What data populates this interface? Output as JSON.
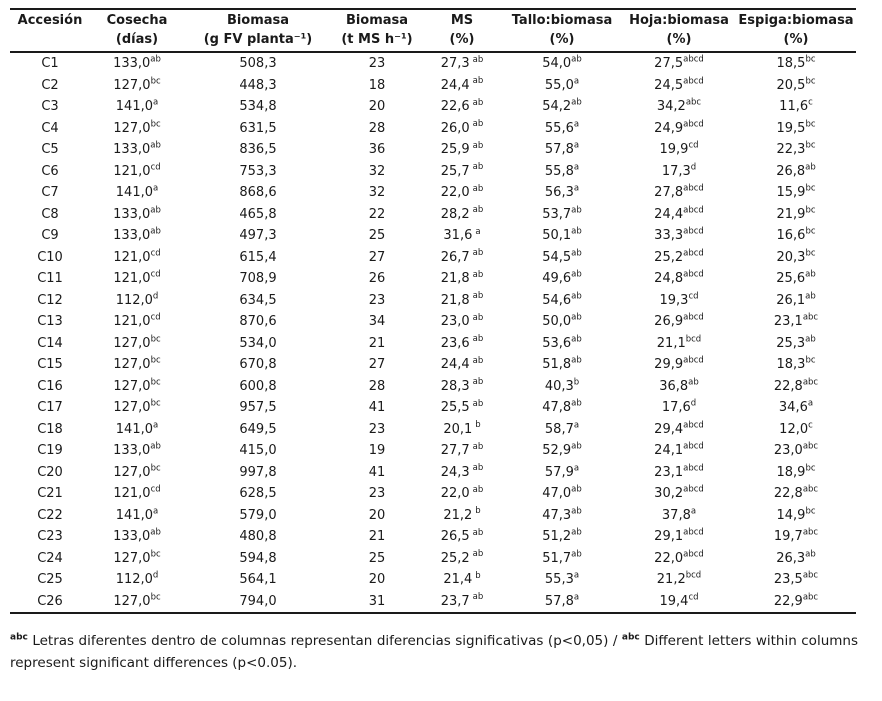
{
  "table": {
    "columns": [
      {
        "id": "accession",
        "line1": "Accesión",
        "line2": "",
        "value_index": 0,
        "sup_index": -1,
        "sup_gap": false
      },
      {
        "id": "cosecha",
        "line1": "Cosecha",
        "line2": "(días)",
        "value_index": 1,
        "sup_index": 2,
        "sup_gap": false
      },
      {
        "id": "biomasa-g",
        "line1": "Biomasa",
        "line2": "(g FV planta⁻¹)",
        "value_index": 3,
        "sup_index": -1,
        "sup_gap": false
      },
      {
        "id": "biomasa-t",
        "line1": "Biomasa",
        "line2": "(t MS h⁻¹)",
        "value_index": 4,
        "sup_index": -1,
        "sup_gap": false
      },
      {
        "id": "ms",
        "line1": "MS",
        "line2": "(%)",
        "value_index": 5,
        "sup_index": 6,
        "sup_gap": true
      },
      {
        "id": "tallo",
        "line1": "Tallo:biomasa",
        "line2": "(%)",
        "value_index": 7,
        "sup_index": 8,
        "sup_gap": false
      },
      {
        "id": "hoja",
        "line1": "Hoja:biomasa",
        "line2": "(%)",
        "value_index": 9,
        "sup_index": 10,
        "sup_gap": false
      },
      {
        "id": "espiga",
        "line1": "Espiga:biomasa",
        "line2": "(%)",
        "value_index": 11,
        "sup_index": 12,
        "sup_gap": false
      }
    ],
    "row_fields": [
      "accession",
      "cosecha",
      "cosecha_sup",
      "biomasa_g_fv_planta",
      "biomasa_t_ms_h",
      "ms_pct",
      "ms_sup",
      "tallo_biomasa_pct",
      "tallo_sup",
      "hoja_biomasa_pct",
      "hoja_sup",
      "espiga_biomasa_pct",
      "espiga_sup"
    ],
    "rows": [
      [
        "C1",
        "133,0",
        "ab",
        "508,3",
        "23",
        "27,3",
        "ab",
        "54,0",
        "ab",
        "27,5",
        "abcd",
        "18,5",
        "bc"
      ],
      [
        "C2",
        "127,0",
        "bc",
        "448,3",
        "18",
        "24,4",
        "ab",
        "55,0",
        "a",
        "24,5",
        "abcd",
        "20,5",
        "bc"
      ],
      [
        "C3",
        "141,0",
        "a",
        "534,8",
        "20",
        "22,6",
        "ab",
        "54,2",
        "ab",
        "34,2",
        "abc",
        "11,6",
        "c"
      ],
      [
        "C4",
        "127,0",
        "bc",
        "631,5",
        "28",
        "26,0",
        "ab",
        "55,6",
        "a",
        "24,9",
        "abcd",
        "19,5",
        "bc"
      ],
      [
        "C5",
        "133,0",
        "ab",
        "836,5",
        "36",
        "25,9",
        "ab",
        "57,8",
        "a",
        "19,9",
        "cd",
        "22,3",
        "bc"
      ],
      [
        "C6",
        "121,0",
        "cd",
        "753,3",
        "32",
        "25,7",
        "ab",
        "55,8",
        "a",
        "17,3",
        "d",
        "26,8",
        "ab"
      ],
      [
        "C7",
        "141,0",
        "a",
        "868,6",
        "32",
        "22,0",
        "ab",
        "56,3",
        "a",
        "27,8",
        "abcd",
        "15,9",
        "bc"
      ],
      [
        "C8",
        "133,0",
        "ab",
        "465,8",
        "22",
        "28,2",
        "ab",
        "53,7",
        "ab",
        "24,4",
        "abcd",
        "21,9",
        "bc"
      ],
      [
        "C9",
        "133,0",
        "ab",
        "497,3",
        "25",
        "31,6",
        "a",
        "50,1",
        "ab",
        "33,3",
        "abcd",
        "16,6",
        "bc"
      ],
      [
        "C10",
        "121,0",
        "cd",
        "615,4",
        "27",
        "26,7",
        "ab",
        "54,5",
        "ab",
        "25,2",
        "abcd",
        "20,3",
        "bc"
      ],
      [
        "C11",
        "121,0",
        "cd",
        "708,9",
        "26",
        "21,8",
        "ab",
        "49,6",
        "ab",
        "24,8",
        "abcd",
        "25,6",
        "ab"
      ],
      [
        "C12",
        "112,0",
        "d",
        "634,5",
        "23",
        "21,8",
        "ab",
        "54,6",
        "ab",
        "19,3",
        "cd",
        "26,1",
        "ab"
      ],
      [
        "C13",
        "121,0",
        "cd",
        "870,6",
        "34",
        "23,0",
        "ab",
        "50,0",
        "ab",
        "26,9",
        "abcd",
        "23,1",
        "abc"
      ],
      [
        "C14",
        "127,0",
        "bc",
        "534,0",
        "21",
        "23,6",
        "ab",
        "53,6",
        "ab",
        "21,1",
        "bcd",
        "25,3",
        "ab"
      ],
      [
        "C15",
        "127,0",
        "bc",
        "670,8",
        "27",
        "24,4",
        "ab",
        "51,8",
        "ab",
        "29,9",
        "abcd",
        "18,3",
        "bc"
      ],
      [
        "C16",
        "127,0",
        "bc",
        "600,8",
        "28",
        "28,3",
        "ab",
        "40,3",
        "b",
        "36,8",
        "ab",
        "22,8",
        "abc"
      ],
      [
        "C17",
        "127,0",
        "bc",
        "957,5",
        "41",
        "25,5",
        "ab",
        "47,8",
        "ab",
        "17,6",
        "d",
        "34,6",
        "a"
      ],
      [
        "C18",
        "141,0",
        "a",
        "649,5",
        "23",
        "20,1",
        "b",
        "58,7",
        "a",
        "29,4",
        "abcd",
        "12,0",
        "c"
      ],
      [
        "C19",
        "133,0",
        "ab",
        "415,0",
        "19",
        "27,7",
        "ab",
        "52,9",
        "ab",
        "24,1",
        "abcd",
        "23,0",
        "abc"
      ],
      [
        "C20",
        "127,0",
        "bc",
        "997,8",
        "41",
        "24,3",
        "ab",
        "57,9",
        "a",
        "23,1",
        "abcd",
        "18,9",
        "bc"
      ],
      [
        "C21",
        "121,0",
        "cd",
        "628,5",
        "23",
        "22,0",
        "ab",
        "47,0",
        "ab",
        "30,2",
        "abcd",
        "22,8",
        "abc"
      ],
      [
        "C22",
        "141,0",
        "a",
        "579,0",
        "20",
        "21,2",
        "b",
        "47,3",
        "ab",
        "37,8",
        "a",
        "14,9",
        "bc"
      ],
      [
        "C23",
        "133,0",
        "ab",
        "480,8",
        "21",
        "26,5",
        "ab",
        "51,2",
        "ab",
        "29,1",
        "abcd",
        "19,7",
        "abc"
      ],
      [
        "C24",
        "127,0",
        "bc",
        "594,8",
        "25",
        "25,2",
        "ab",
        "51,7",
        "ab",
        "22,0",
        "abcd",
        "26,3",
        "ab"
      ],
      [
        "C25",
        "112,0",
        "d",
        "564,1",
        "20",
        "21,4",
        "b",
        "55,3",
        "a",
        "21,2",
        "bcd",
        "23,5",
        "abc"
      ],
      [
        "C26",
        "127,0",
        "bc",
        "794,0",
        "31",
        "23,7",
        "ab",
        "57,8",
        "a",
        "19,4",
        "cd",
        "22,9",
        "abc"
      ]
    ]
  },
  "footnote": {
    "marker_es": "abc",
    "text_es": " Letras diferentes dentro de columnas representan diferencias significativas (p<0,05) / ",
    "marker_en": "abc",
    "text_en": " Different letters within columns represent significant differences (p<0.05)."
  },
  "colors": {
    "text": "#1a1a1a",
    "rule": "#1a1a1a",
    "background": "#ffffff"
  }
}
